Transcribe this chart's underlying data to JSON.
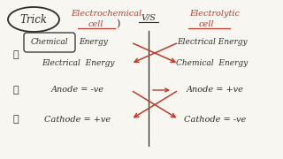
{
  "bg_color": "#f8f6f0",
  "title_trick": "Trick",
  "col1_title": "Electrochemical",
  "col1_title2": "cell",
  "vs_text": "V/S",
  "col2_title": "Electrolytic",
  "col2_title2": "cell",
  "row1_num": "①",
  "row1_left_top": "Chemical Energy",
  "row1_left_bot": "Electrical  Energy",
  "row1_right_top": "Electrical Energy",
  "row1_right_bot": "Chemical  Energy",
  "row2_num": "②",
  "row2_left": "Anode = -ve",
  "row2_right": "Anode = +ve",
  "row3_num": "③",
  "row3_left": "Cathode = +ve",
  "row3_right": "Cathode = -ve",
  "red_color": "#c0392b",
  "dark_color": "#2c2c2c",
  "gray_color": "#555555"
}
